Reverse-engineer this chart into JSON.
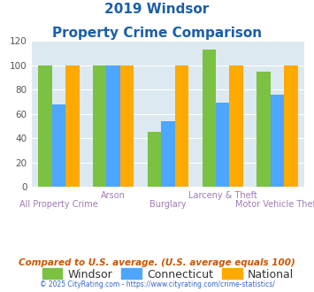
{
  "title_line1": "2019 Windsor",
  "title_line2": "Property Crime Comparison",
  "categories": [
    "All Property Crime",
    "Arson",
    "Burglary",
    "Larceny & Theft",
    "Motor Vehicle Theft"
  ],
  "top_labels": [
    "",
    "Arson",
    "",
    "Larceny & Theft",
    ""
  ],
  "bot_labels": [
    "All Property Crime",
    "",
    "Burglary",
    "",
    "Motor Vehicle Theft"
  ],
  "windsor": [
    100,
    100,
    45,
    113,
    95
  ],
  "connecticut": [
    68,
    100,
    54,
    69,
    76
  ],
  "national": [
    100,
    100,
    100,
    100,
    100
  ],
  "windsor_color": "#7bc142",
  "connecticut_color": "#4da6ff",
  "national_color": "#ffaa00",
  "ylim": [
    0,
    120
  ],
  "yticks": [
    0,
    20,
    40,
    60,
    80,
    100,
    120
  ],
  "plot_bg": "#dce9f0",
  "title_color": "#1a5fa8",
  "xlabel_color": "#9e7bb5",
  "footer_text": "Compared to U.S. average. (U.S. average equals 100)",
  "copyright_text": "© 2025 CityRating.com - https://www.cityrating.com/crime-statistics/",
  "legend_labels": [
    "Windsor",
    "Connecticut",
    "National"
  ],
  "bar_width": 0.25
}
